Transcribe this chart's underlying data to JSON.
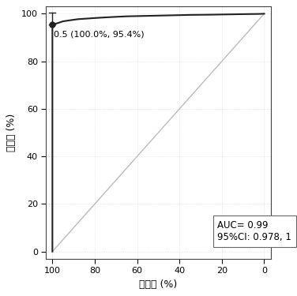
{
  "title": "",
  "xlabel": "特异度 (%)",
  "ylabel": "灵敏度 (%)",
  "auc_text": "AUC= 0.99\n95%CI: 0.978, 1",
  "annotation_text": "0.5 (100.0%, 95.4%)",
  "annotation_point": [
    100.0,
    95.4
  ],
  "xlim": [
    103,
    -3
  ],
  "ylim": [
    -3,
    103
  ],
  "xticks": [
    100,
    80,
    60,
    40,
    20,
    0
  ],
  "yticks": [
    0,
    20,
    40,
    60,
    80,
    100
  ],
  "roc_color": "#222222",
  "diag_color": "#bbbbbb",
  "background_color": "#ffffff",
  "plot_bg_color": "#ffffff",
  "grid_color": "#cccccc",
  "curve_specificity": [
    100,
    100,
    100,
    98.5,
    97,
    95,
    92,
    88,
    83,
    78,
    72,
    65,
    55,
    45,
    35,
    25,
    15,
    8,
    3,
    1,
    0
  ],
  "curve_sensitivity": [
    0,
    5,
    95.4,
    95.8,
    96.2,
    96.8,
    97.2,
    97.7,
    98.0,
    98.3,
    98.6,
    98.9,
    99.1,
    99.3,
    99.5,
    99.6,
    99.75,
    99.85,
    99.9,
    99.95,
    100
  ]
}
